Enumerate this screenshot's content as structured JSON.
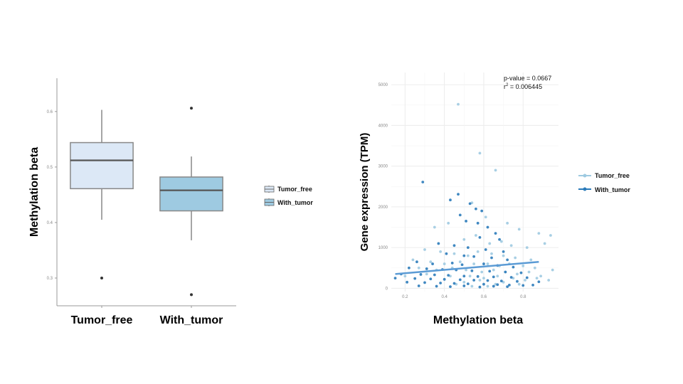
{
  "chart_data": [
    {
      "type": "box",
      "ylabel": "Methylation beta",
      "ylim": [
        0.25,
        0.66
      ],
      "yticks": [
        0.3,
        0.4,
        0.5,
        0.6
      ],
      "ytick_labels": [
        "0.3",
        "0.4",
        "0.5",
        "0.6"
      ],
      "categories": [
        "Tumor_free",
        "With_tumor"
      ],
      "colors": [
        "#dce8f6",
        "#9ecae1"
      ],
      "boxes": [
        {
          "name": "Tumor_free",
          "whisker_low": 0.405,
          "q1": 0.461,
          "median": 0.512,
          "q3": 0.544,
          "whisker_high": 0.603,
          "outliers": [
            0.3
          ]
        },
        {
          "name": "With_tumor",
          "whisker_low": 0.368,
          "q1": 0.421,
          "median": 0.458,
          "q3": 0.482,
          "whisker_high": 0.519,
          "outliers": [
            0.606,
            0.27
          ]
        }
      ],
      "legend": {
        "position": "right",
        "entries": [
          "Tumor_free",
          "With_tumor"
        ]
      },
      "grid": false
    },
    {
      "type": "scatter",
      "xlabel": "Methylation beta",
      "ylabel": "Gene expression (TPM)",
      "xlim": [
        0.13,
        0.98
      ],
      "ylim": [
        -80,
        5300
      ],
      "xticks": [
        0.2,
        0.4,
        0.6,
        0.8
      ],
      "xtick_labels": [
        "0.2",
        "0.4",
        "0.6",
        "0.8"
      ],
      "yticks": [
        0,
        1000,
        2000,
        3000,
        4000,
        5000
      ],
      "ytick_labels": [
        "0",
        "1000",
        "2000",
        "3000",
        "4000",
        "5000"
      ],
      "grid": true,
      "annotation": {
        "pvalue": "p-value = 0.0667",
        "r2_prefix": "r",
        "r2_sup": "2",
        "r2_value": " = 0.006445"
      },
      "legend": {
        "position": "right",
        "entries": [
          "Tumor_free",
          "With_tumor"
        ]
      },
      "series": [
        {
          "name": "Tumor_free",
          "color": "#9ecae1",
          "x": [
            0.47,
            0.58,
            0.66,
            0.54,
            0.35,
            0.42,
            0.61,
            0.72,
            0.78,
            0.88,
            0.94,
            0.5,
            0.56,
            0.63,
            0.69,
            0.74,
            0.82,
            0.91,
            0.3,
            0.38,
            0.45,
            0.52,
            0.57,
            0.64,
            0.7,
            0.76,
            0.84,
            0.24,
            0.33,
            0.4,
            0.48,
            0.55,
            0.62,
            0.68,
            0.73,
            0.8,
            0.86,
            0.95,
            0.27,
            0.36,
            0.44,
            0.51,
            0.59,
            0.65,
            0.71,
            0.77,
            0.83,
            0.89,
            0.2,
            0.31,
            0.43,
            0.53,
            0.6,
            0.67,
            0.75,
            0.81,
            0.87,
            0.93,
            0.5,
            0.58,
            0.66,
            0.46,
            0.7,
            0.62,
            0.54,
            0.78
          ],
          "y": [
            4520,
            3320,
            2900,
            2100,
            1500,
            1600,
            1750,
            1600,
            1450,
            1350,
            1300,
            1200,
            1300,
            1100,
            1150,
            1050,
            1000,
            1100,
            950,
            900,
            850,
            800,
            900,
            850,
            800,
            750,
            700,
            700,
            650,
            600,
            650,
            600,
            600,
            550,
            600,
            550,
            500,
            450,
            500,
            450,
            500,
            450,
            400,
            450,
            400,
            350,
            400,
            300,
            300,
            350,
            300,
            300,
            250,
            300,
            250,
            200,
            250,
            200,
            150,
            200,
            100,
            100,
            150,
            50,
            50,
            100
          ]
        },
        {
          "name": "With_tumor",
          "color": "#2b7bba",
          "x": [
            0.29,
            0.47,
            0.43,
            0.53,
            0.56,
            0.59,
            0.48,
            0.51,
            0.57,
            0.62,
            0.66,
            0.58,
            0.68,
            0.37,
            0.45,
            0.52,
            0.61,
            0.7,
            0.41,
            0.5,
            0.55,
            0.64,
            0.72,
            0.26,
            0.34,
            0.44,
            0.49,
            0.6,
            0.67,
            0.75,
            0.22,
            0.31,
            0.39,
            0.46,
            0.54,
            0.63,
            0.71,
            0.79,
            0.18,
            0.28,
            0.35,
            0.42,
            0.5,
            0.57,
            0.65,
            0.74,
            0.82,
            0.15,
            0.25,
            0.33,
            0.4,
            0.48,
            0.55,
            0.62,
            0.69,
            0.77,
            0.88,
            0.21,
            0.3,
            0.38,
            0.45,
            0.52,
            0.6,
            0.67,
            0.73,
            0.8,
            0.27,
            0.36,
            0.43,
            0.5,
            0.58,
            0.65,
            0.72,
            0.85
          ],
          "y": [
            2610,
            2310,
            2170,
            2080,
            1950,
            1900,
            1800,
            1650,
            1600,
            1500,
            1350,
            1250,
            1200,
            1100,
            1050,
            1000,
            950,
            900,
            850,
            800,
            780,
            750,
            700,
            650,
            600,
            620,
            580,
            600,
            560,
            520,
            500,
            480,
            460,
            450,
            430,
            420,
            400,
            380,
            350,
            340,
            330,
            320,
            300,
            290,
            280,
            270,
            260,
            250,
            240,
            230,
            220,
            210,
            200,
            190,
            180,
            170,
            160,
            150,
            140,
            130,
            120,
            110,
            100,
            90,
            80,
            70,
            60,
            50,
            40,
            60,
            30,
            50,
            40,
            80
          ]
        }
      ],
      "trend": {
        "x": [
          0.15,
          0.88
        ],
        "y": [
          350,
          650
        ],
        "color": "#5b9bd5"
      }
    }
  ]
}
